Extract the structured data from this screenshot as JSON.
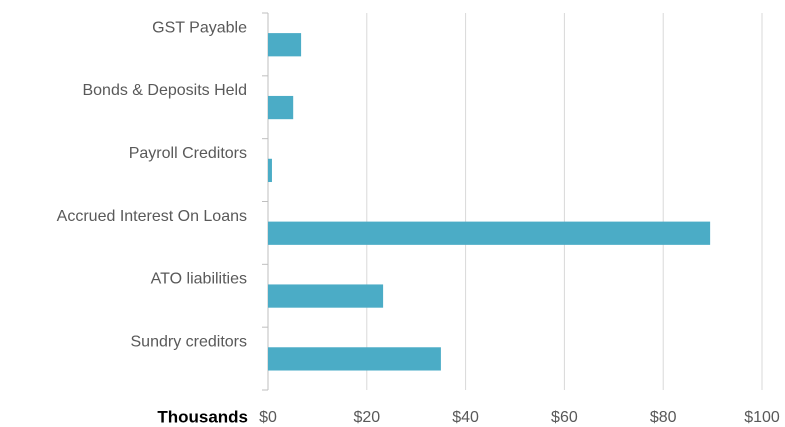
{
  "chart_data": {
    "type": "barh",
    "categories": [
      "GST Payable",
      "Bonds & Deposits Held",
      "Payroll Creditors",
      "Accrued Interest On Loans",
      "ATO liabilities",
      "Sundry creditors"
    ],
    "values": [
      6.7,
      5.1,
      0.8,
      89.5,
      23.3,
      35.0
    ],
    "color": "#4bacc6",
    "xlabel": "Thousands",
    "xlim": [
      0,
      100
    ],
    "xticks": [
      {
        "value": 0,
        "label": "$0"
      },
      {
        "value": 20,
        "label": "$20"
      },
      {
        "value": 40,
        "label": "$40"
      },
      {
        "value": 60,
        "label": "$60"
      },
      {
        "value": 80,
        "label": "$80"
      },
      {
        "value": 100,
        "label": "$100"
      }
    ],
    "grid": true
  }
}
